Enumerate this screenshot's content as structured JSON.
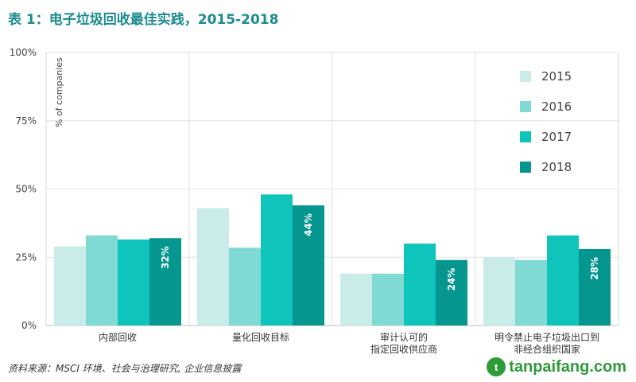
{
  "header": {
    "title": "表 1：电子垃圾回收最佳实践，2015-2018"
  },
  "chart_data": {
    "type": "bar",
    "ylabel": "% of companies",
    "ylim": [
      0,
      100
    ],
    "yticks": [
      "0%",
      "25%",
      "50%",
      "75%",
      "100%"
    ],
    "grid": true,
    "legend_position": "top-right",
    "categories": [
      [
        "内部回收"
      ],
      [
        "量化回收目标"
      ],
      [
        "审计认可的",
        "指定回收供应商"
      ],
      [
        "明令禁止电子垃圾出口到",
        "非经合组织国家"
      ]
    ],
    "series": [
      {
        "name": "2015",
        "color": "#c9ece9",
        "values": [
          29,
          43,
          19,
          25
        ]
      },
      {
        "name": "2016",
        "color": "#7fdad3",
        "values": [
          33,
          28.5,
          19,
          24
        ]
      },
      {
        "name": "2017",
        "color": "#0ec4bb",
        "values": [
          31.5,
          48,
          30,
          33
        ]
      },
      {
        "name": "2018",
        "color": "#069690",
        "values": [
          32,
          44,
          24,
          28
        ],
        "labels": [
          "32%",
          "44%",
          "24%",
          "28%"
        ]
      }
    ]
  },
  "footer": {
    "source": "资料来源：MSCI 环境、社会与治理研究, 企业信息披露",
    "watermark": "tanpaifang.com",
    "watermark_icon": "leaf-logo-icon",
    "watermark_color": "#2e9b3a"
  }
}
